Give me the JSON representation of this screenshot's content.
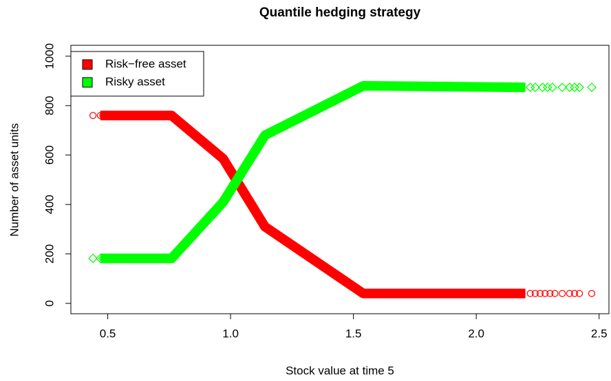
{
  "chart_data": {
    "type": "scatter",
    "title": "Quantile hedging strategy",
    "xlabel": "Stock value at time 5",
    "ylabel": "Number of asset units",
    "xlim": [
      0.35,
      2.54
    ],
    "ylim": [
      -42,
      1044
    ],
    "xticks": [
      0.5,
      {
        "value": 1,
        "label": "1.0"
      },
      1.5,
      {
        "value": 2,
        "label": "2.0"
      },
      2.5
    ],
    "yticks": [
      0,
      200,
      400,
      600,
      800,
      1000
    ],
    "legend": "top-left",
    "series": [
      {
        "name": "Risk−free asset",
        "color": "#ff0000",
        "marker": "circle",
        "x": [
          0.47,
          0.76,
          0.97,
          1.14,
          1.54,
          2.2
        ],
        "values": [
          760,
          760,
          585,
          310,
          40,
          40
        ],
        "tail_x": [
          0.44,
          0.47,
          0.48,
          0.49,
          2.22,
          2.24,
          2.26,
          2.28,
          2.3,
          2.32,
          2.35,
          2.38,
          2.4,
          2.42,
          2.47
        ],
        "tail_values": [
          760,
          760,
          760,
          760,
          40,
          40,
          40,
          40,
          40,
          40,
          40,
          40,
          40,
          40,
          40
        ]
      },
      {
        "name": "Risky asset",
        "color": "#00ff00",
        "marker": "diamond",
        "x": [
          0.47,
          0.76,
          0.97,
          1.14,
          1.54,
          2.2
        ],
        "values": [
          182,
          182,
          410,
          680,
          880,
          874
        ],
        "tail_x": [
          0.44,
          0.47,
          0.48,
          2.22,
          2.24,
          2.27,
          2.29,
          2.31,
          2.35,
          2.38,
          2.4,
          2.42,
          2.47
        ],
        "tail_values": [
          182,
          182,
          182,
          874,
          874,
          874,
          874,
          874,
          874,
          874,
          874,
          874,
          874
        ]
      }
    ]
  }
}
